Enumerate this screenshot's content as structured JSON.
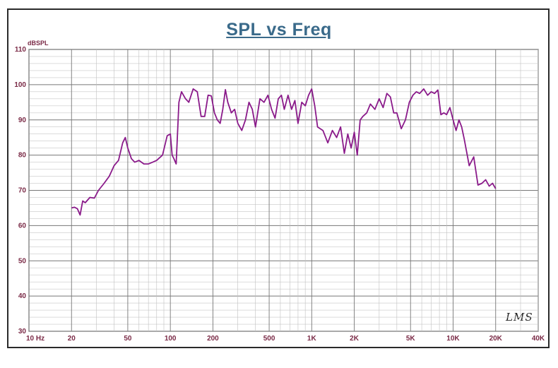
{
  "chart_data": {
    "type": "line",
    "title": "SPL vs Freq",
    "ylabel": "dBSPL",
    "xlabel": "",
    "xscale": "log",
    "xlim": [
      10,
      40000
    ],
    "ylim": [
      30,
      110
    ],
    "grid": true,
    "x_tick_labels": [
      "10 Hz",
      "20",
      "50",
      "100",
      "200",
      "500",
      "1K",
      "2K",
      "5K",
      "10K",
      "20K",
      "40K"
    ],
    "y_tick_labels": [
      "30",
      "40",
      "50",
      "60",
      "70",
      "80",
      "90",
      "100",
      "110"
    ],
    "series": [
      {
        "color": "#8a1a8a",
        "x": [
          20,
          21,
          22,
          23,
          24,
          25,
          27,
          29,
          31,
          34,
          37,
          40,
          43,
          46,
          48,
          50,
          53,
          56,
          60,
          65,
          70,
          75,
          80,
          88,
          95,
          100,
          103,
          106,
          110,
          115,
          120,
          128,
          135,
          145,
          155,
          165,
          175,
          185,
          195,
          205,
          215,
          225,
          235,
          245,
          255,
          270,
          285,
          300,
          320,
          340,
          360,
          380,
          400,
          430,
          460,
          490,
          520,
          550,
          580,
          610,
          640,
          680,
          720,
          760,
          800,
          850,
          900,
          950,
          1000,
          1050,
          1100,
          1200,
          1300,
          1400,
          1500,
          1600,
          1700,
          1800,
          1900,
          2000,
          2100,
          2200,
          2300,
          2450,
          2600,
          2800,
          3000,
          3200,
          3400,
          3600,
          3800,
          4000,
          4300,
          4600,
          4900,
          5200,
          5500,
          5800,
          6200,
          6600,
          7000,
          7400,
          7800,
          8200,
          8600,
          9000,
          9500,
          10000,
          10500,
          11000,
          11500,
          12000,
          13000,
          14000,
          15000,
          16000,
          17000,
          18000,
          19000,
          20000
        ],
        "values": [
          65,
          65.2,
          64.8,
          63,
          67,
          66.5,
          68,
          67.8,
          70,
          72,
          74,
          77,
          78.5,
          83.5,
          85,
          82,
          79,
          78,
          78.5,
          77.5,
          77.5,
          78,
          78.5,
          80,
          85.5,
          86,
          80,
          79,
          77.5,
          95,
          98,
          96,
          95,
          98.8,
          98,
          91,
          91,
          97,
          96.8,
          92,
          90,
          89,
          93,
          98.6,
          95,
          92,
          93,
          89,
          87,
          90,
          95,
          93,
          88,
          96,
          95,
          97,
          93,
          90.5,
          96,
          97,
          93,
          97,
          93,
          95.5,
          89,
          95,
          94,
          97,
          98.8,
          94,
          88,
          87,
          83.5,
          87,
          85,
          88,
          80.5,
          86,
          82,
          86.5,
          80,
          90,
          91,
          92,
          94.5,
          93,
          96,
          93.5,
          97.5,
          96.5,
          92,
          92,
          87.5,
          90,
          95,
          97,
          98,
          97.5,
          98.8,
          97,
          98,
          97.5,
          98.5,
          91.5,
          92,
          91.5,
          93.5,
          90,
          87,
          90,
          88,
          84.5,
          77,
          79.5,
          71.5,
          72,
          73,
          71.2,
          72,
          70.5
        ]
      }
    ]
  },
  "logo_text": "LMS"
}
